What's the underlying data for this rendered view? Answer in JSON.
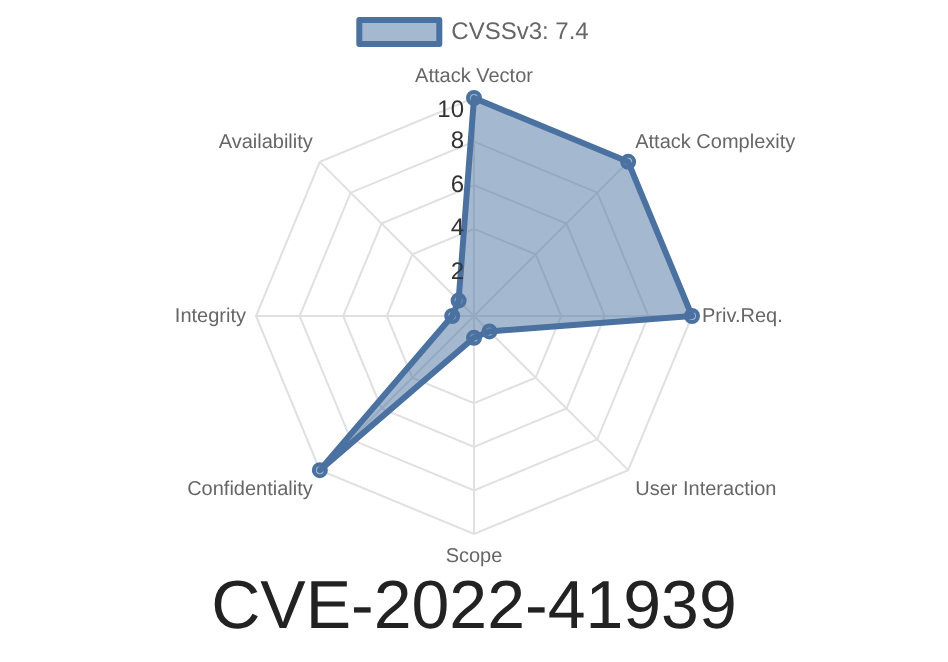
{
  "chart_data": {
    "type": "radar",
    "title": "CVE-2022-41939",
    "categories": [
      "Attack Vector",
      "Attack Complexity",
      "Priv.Req.",
      "User Interaction",
      "Scope",
      "Confidentiality",
      "Integrity",
      "Availability"
    ],
    "series": [
      {
        "name": "CVSSv3: 7.4",
        "color": "#4a71a0",
        "values": [
          10,
          10,
          10,
          1,
          1,
          10,
          1,
          1
        ]
      }
    ],
    "ylim": [
      0,
      10
    ],
    "yticks": [
      2,
      4,
      6,
      8,
      10
    ],
    "legend": "top",
    "marker": "circle",
    "grid": true
  }
}
